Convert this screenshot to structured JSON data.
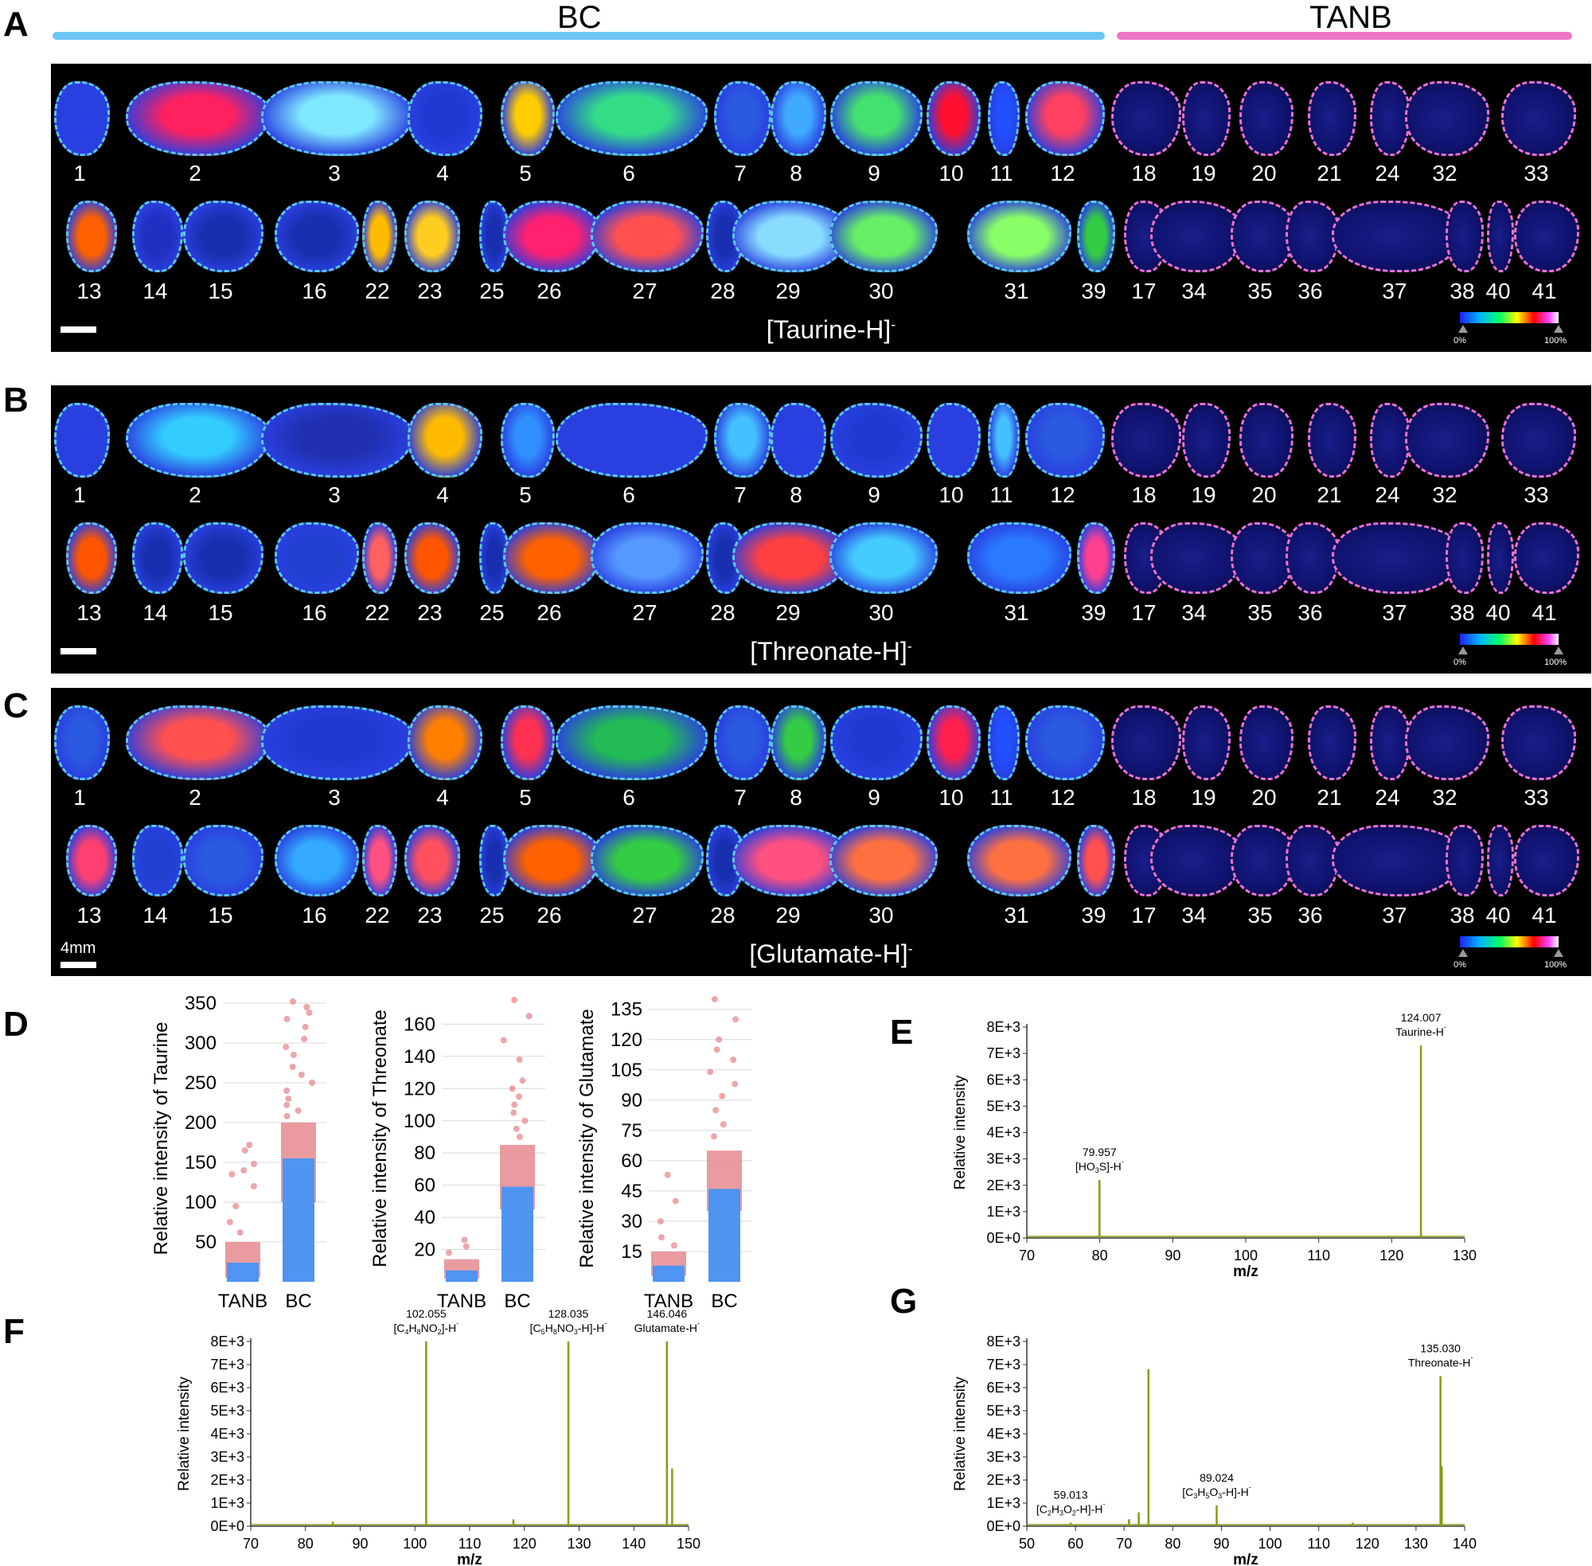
{
  "panels": {
    "A": "A",
    "B": "B",
    "C": "C",
    "D": "D",
    "E": "E",
    "F": "F",
    "G": "G"
  },
  "groups": {
    "bc": "BC",
    "tanb": "TANB",
    "bc_color": "#6cc6f5",
    "tanb_color": "#ee74c8"
  },
  "row1_labels": [
    "1",
    "2",
    "3",
    "4",
    "5",
    "6",
    "7",
    "8",
    "9",
    "10",
    "11",
    "12",
    "18",
    "19",
    "20",
    "21",
    "24",
    "32",
    "33"
  ],
  "row2_labels": [
    "13",
    "14",
    "15",
    "16",
    "22",
    "23",
    "25",
    "26",
    "27",
    "28",
    "29",
    "30",
    "31",
    "39",
    "17",
    "34",
    "35",
    "36",
    "37",
    "38",
    "40",
    "41"
  ],
  "ion_images": [
    {
      "name": "[Taurine-H]",
      "sup": "-"
    },
    {
      "name": "[Threonate-H]",
      "sup": "-"
    },
    {
      "name": "[Glutamate-H]",
      "sup": "-"
    }
  ],
  "colorbar": {
    "min": "0%",
    "max": "100%"
  },
  "scale_label": "4mm",
  "chart_data": [
    {
      "type": "scatter",
      "panel": "D",
      "ylabel": "Relative intensity of Taurine",
      "categories": [
        "TANB",
        "BC"
      ],
      "ylim": [
        0,
        360
      ],
      "yticks": [
        "50",
        "100",
        "150",
        "200",
        "250",
        "300",
        "350"
      ],
      "bar_values": [
        24,
        155
      ],
      "spread": [
        [
          5,
          50
        ],
        [
          100,
          200
        ]
      ],
      "outliers": [
        [
          0,
          172
        ],
        [
          0,
          165
        ],
        [
          0,
          148
        ],
        [
          0,
          140
        ],
        [
          0,
          135
        ],
        [
          0,
          120
        ],
        [
          0,
          95
        ],
        [
          0,
          75
        ],
        [
          0,
          62
        ],
        [
          1,
          352
        ],
        [
          1,
          345
        ],
        [
          1,
          338
        ],
        [
          1,
          330
        ],
        [
          1,
          320
        ],
        [
          1,
          305
        ],
        [
          1,
          295
        ],
        [
          1,
          285
        ],
        [
          1,
          270
        ],
        [
          1,
          260
        ],
        [
          1,
          250
        ],
        [
          1,
          240
        ],
        [
          1,
          230
        ],
        [
          1,
          222
        ],
        [
          1,
          215
        ],
        [
          1,
          208
        ]
      ]
    },
    {
      "type": "scatter",
      "panel": "D",
      "ylabel": "Relative intensity of Threonate",
      "categories": [
        "TANB",
        "BC"
      ],
      "ylim": [
        0,
        178
      ],
      "yticks": [
        "20",
        "40",
        "60",
        "80",
        "100",
        "120",
        "140",
        "160"
      ],
      "bar_values": [
        7,
        59
      ],
      "spread": [
        [
          2,
          14
        ],
        [
          45,
          85
        ]
      ],
      "outliers": [
        [
          0,
          26
        ],
        [
          0,
          22
        ],
        [
          0,
          18
        ],
        [
          1,
          175
        ],
        [
          1,
          165
        ],
        [
          1,
          150
        ],
        [
          1,
          138
        ],
        [
          1,
          125
        ],
        [
          1,
          120
        ],
        [
          1,
          115
        ],
        [
          1,
          110
        ],
        [
          1,
          105
        ],
        [
          1,
          100
        ],
        [
          1,
          95
        ],
        [
          1,
          90
        ]
      ]
    },
    {
      "type": "scatter",
      "panel": "D",
      "ylabel": "Relative intensity of Glutamate",
      "categories": [
        "TANB",
        "BC"
      ],
      "ylim": [
        0,
        142
      ],
      "yticks": [
        "15",
        "30",
        "45",
        "60",
        "75",
        "90",
        "105",
        "120",
        "135"
      ],
      "bar_values": [
        8,
        46
      ],
      "spread": [
        [
          3,
          15
        ],
        [
          35,
          65
        ]
      ],
      "outliers": [
        [
          0,
          53
        ],
        [
          0,
          40
        ],
        [
          0,
          30
        ],
        [
          0,
          22
        ],
        [
          0,
          18
        ],
        [
          1,
          140
        ],
        [
          1,
          130
        ],
        [
          1,
          120
        ],
        [
          1,
          115
        ],
        [
          1,
          110
        ],
        [
          1,
          104
        ],
        [
          1,
          98
        ],
        [
          1,
          92
        ],
        [
          1,
          85
        ],
        [
          1,
          78
        ],
        [
          1,
          72
        ]
      ]
    },
    {
      "type": "line",
      "panel": "E",
      "xlabel": "m/z",
      "ylabel": "Relative intensity",
      "xlim": [
        70,
        130
      ],
      "ylim": [
        0,
        8000
      ],
      "xticks": [
        "70",
        "80",
        "90",
        "100",
        "110",
        "120",
        "130"
      ],
      "yticks": [
        "0E+0",
        "1E+3",
        "2E+3",
        "3E+3",
        "4E+3",
        "5E+3",
        "6E+3",
        "7E+3",
        "8E+3"
      ],
      "peaks": [
        {
          "x": 79.957,
          "y": 2200
        },
        {
          "x": 124.007,
          "y": 7300
        }
      ],
      "annotations": [
        {
          "x": 79.957,
          "y": 2200,
          "mz": "79.957",
          "pre": "[HO",
          "sub": "3",
          "post": "S]-H",
          "sup": "-"
        },
        {
          "x": 124.007,
          "y": 7300,
          "mz": "124.007",
          "pre": "Taurine-H",
          "sub": "",
          "post": "",
          "sup": "-"
        }
      ]
    },
    {
      "type": "line",
      "panel": "F",
      "xlabel": "m/z",
      "ylabel": "Relative intensity",
      "xlim": [
        70,
        150
      ],
      "ylim": [
        0,
        8000
      ],
      "xticks": [
        "70",
        "80",
        "90",
        "100",
        "110",
        "120",
        "130",
        "140",
        "150"
      ],
      "yticks": [
        "0E+0",
        "1E+3",
        "2E+3",
        "3E+3",
        "4E+3",
        "5E+3",
        "6E+3",
        "7E+3",
        "8E+3"
      ],
      "peaks": [
        {
          "x": 85,
          "y": 200
        },
        {
          "x": 102.055,
          "y": 8000
        },
        {
          "x": 118,
          "y": 300
        },
        {
          "x": 128.035,
          "y": 8000
        },
        {
          "x": 146.046,
          "y": 8000
        },
        {
          "x": 147,
          "y": 2500
        }
      ],
      "annotations": [
        {
          "x": 102.055,
          "y": 8000,
          "mz": "102.055",
          "pre": "[C",
          "sub": "4",
          "post": "H",
          "sub2": "8",
          "post2": "NO",
          "sub3": "2",
          "post3": "]-H",
          "sup": "-"
        },
        {
          "x": 128.035,
          "y": 8000,
          "mz": "128.035",
          "pre": "[C",
          "sub": "5",
          "post": "H",
          "sub2": "8",
          "post2": "NO",
          "sub3": "3",
          "post3": "-H]-H",
          "sup": "-"
        },
        {
          "x": 146.046,
          "y": 8000,
          "mz": "146.046",
          "pre": "Glutamate-H",
          "sub": "",
          "post": "",
          "sup": "-"
        }
      ]
    },
    {
      "type": "line",
      "panel": "G",
      "xlabel": "m/z",
      "ylabel": "Relative intensity",
      "xlim": [
        50,
        140
      ],
      "ylim": [
        0,
        8000
      ],
      "xticks": [
        "50",
        "60",
        "70",
        "80",
        "90",
        "100",
        "110",
        "120",
        "130",
        "140"
      ],
      "yticks": [
        "0E+0",
        "1E+3",
        "2E+3",
        "3E+3",
        "4E+3",
        "5E+3",
        "6E+3",
        "7E+3",
        "8E+3"
      ],
      "peaks": [
        {
          "x": 59.013,
          "y": 150
        },
        {
          "x": 71,
          "y": 300
        },
        {
          "x": 73,
          "y": 600
        },
        {
          "x": 75,
          "y": 6800
        },
        {
          "x": 89.024,
          "y": 900
        },
        {
          "x": 117,
          "y": 150
        },
        {
          "x": 135.03,
          "y": 6500
        },
        {
          "x": 135.3,
          "y": 2600
        }
      ],
      "annotations": [
        {
          "x": 59.013,
          "y": 150,
          "mz": "59.013",
          "pre": "[C",
          "sub": "2",
          "post": "H",
          "sub2": "3",
          "post2": "O",
          "sub3": "2",
          "post3": "-H]-H",
          "sup": "-"
        },
        {
          "x": 89.024,
          "y": 900,
          "mz": "89.024",
          "pre": "[C",
          "sub": "3",
          "post": "H",
          "sub2": "5",
          "post2": "O",
          "sub3": "3",
          "post3": "-H]-H",
          "sup": "-"
        },
        {
          "x": 135.03,
          "y": 6500,
          "mz": "135.030",
          "pre": "Threonate-H",
          "sub": "",
          "post": "",
          "sup": "-"
        }
      ]
    }
  ]
}
